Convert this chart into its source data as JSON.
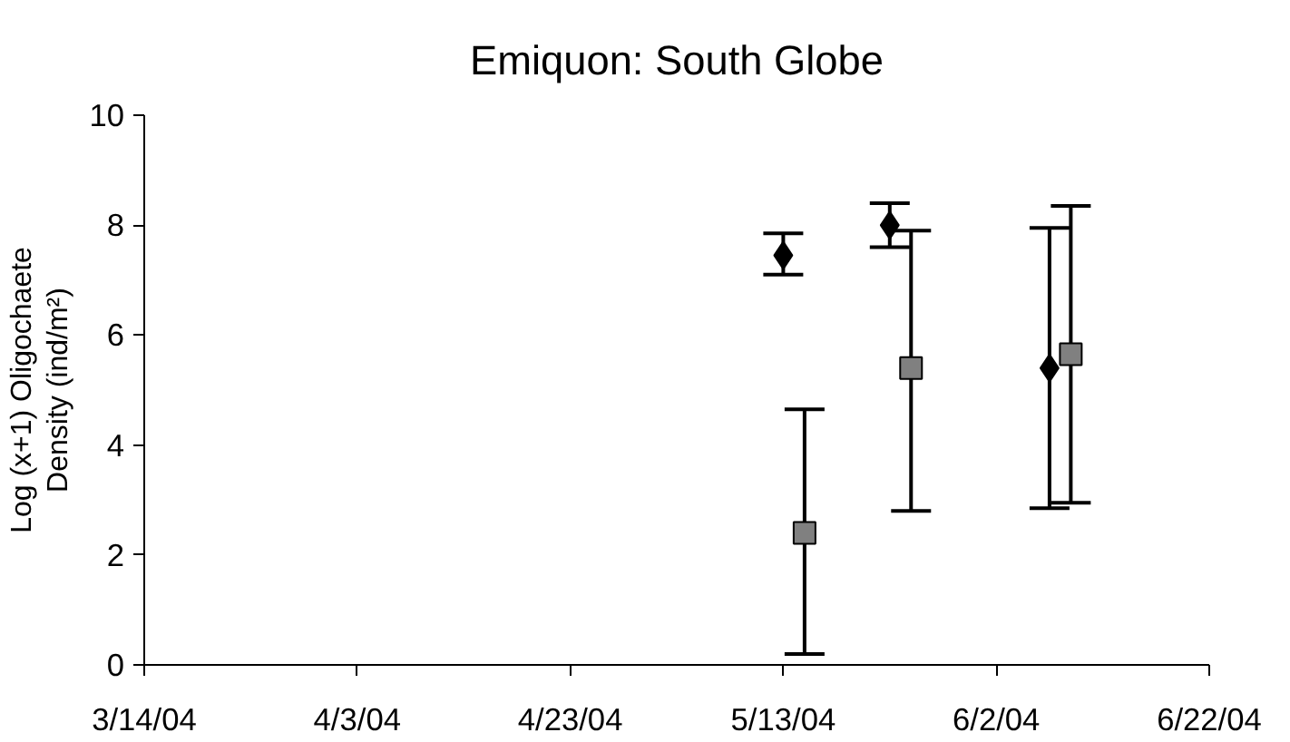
{
  "chart_data": {
    "type": "scatter",
    "title": "Emiquon: South Globe",
    "ylabel": "Log (x+1) Oligochaete\nDensity (ind/m²)",
    "xlim": [
      "2004-03-14",
      "2004-06-22"
    ],
    "xticks": [
      {
        "value": "2004-03-14",
        "label": "3/14/04"
      },
      {
        "value": "2004-04-03",
        "label": "4/3/04"
      },
      {
        "value": "2004-04-23",
        "label": "4/23/04"
      },
      {
        "value": "2004-05-13",
        "label": "5/13/04"
      },
      {
        "value": "2004-06-02",
        "label": "6/2/04"
      },
      {
        "value": "2004-06-22",
        "label": "6/22/04"
      }
    ],
    "ylim": [
      0,
      10
    ],
    "yticks": [
      0,
      2,
      4,
      6,
      8,
      10
    ],
    "grid": false,
    "series": [
      {
        "color": "#000000",
        "marker": "diamond",
        "x": [
          "2004-05-13",
          "2004-05-23",
          "2004-06-07"
        ],
        "values": [
          7.45,
          8.0,
          5.4
        ],
        "errors": [
          [
            7.1,
            7.85
          ],
          [
            7.6,
            8.4
          ],
          [
            2.85,
            7.95
          ]
        ]
      },
      {
        "color": "#808080",
        "marker": "square",
        "x": [
          "2004-05-15",
          "2004-05-25",
          "2004-06-09"
        ],
        "values": [
          2.4,
          5.4,
          5.65
        ],
        "errors": [
          [
            0.2,
            4.65
          ],
          [
            2.8,
            7.9
          ],
          [
            2.95,
            8.35
          ]
        ]
      }
    ]
  }
}
